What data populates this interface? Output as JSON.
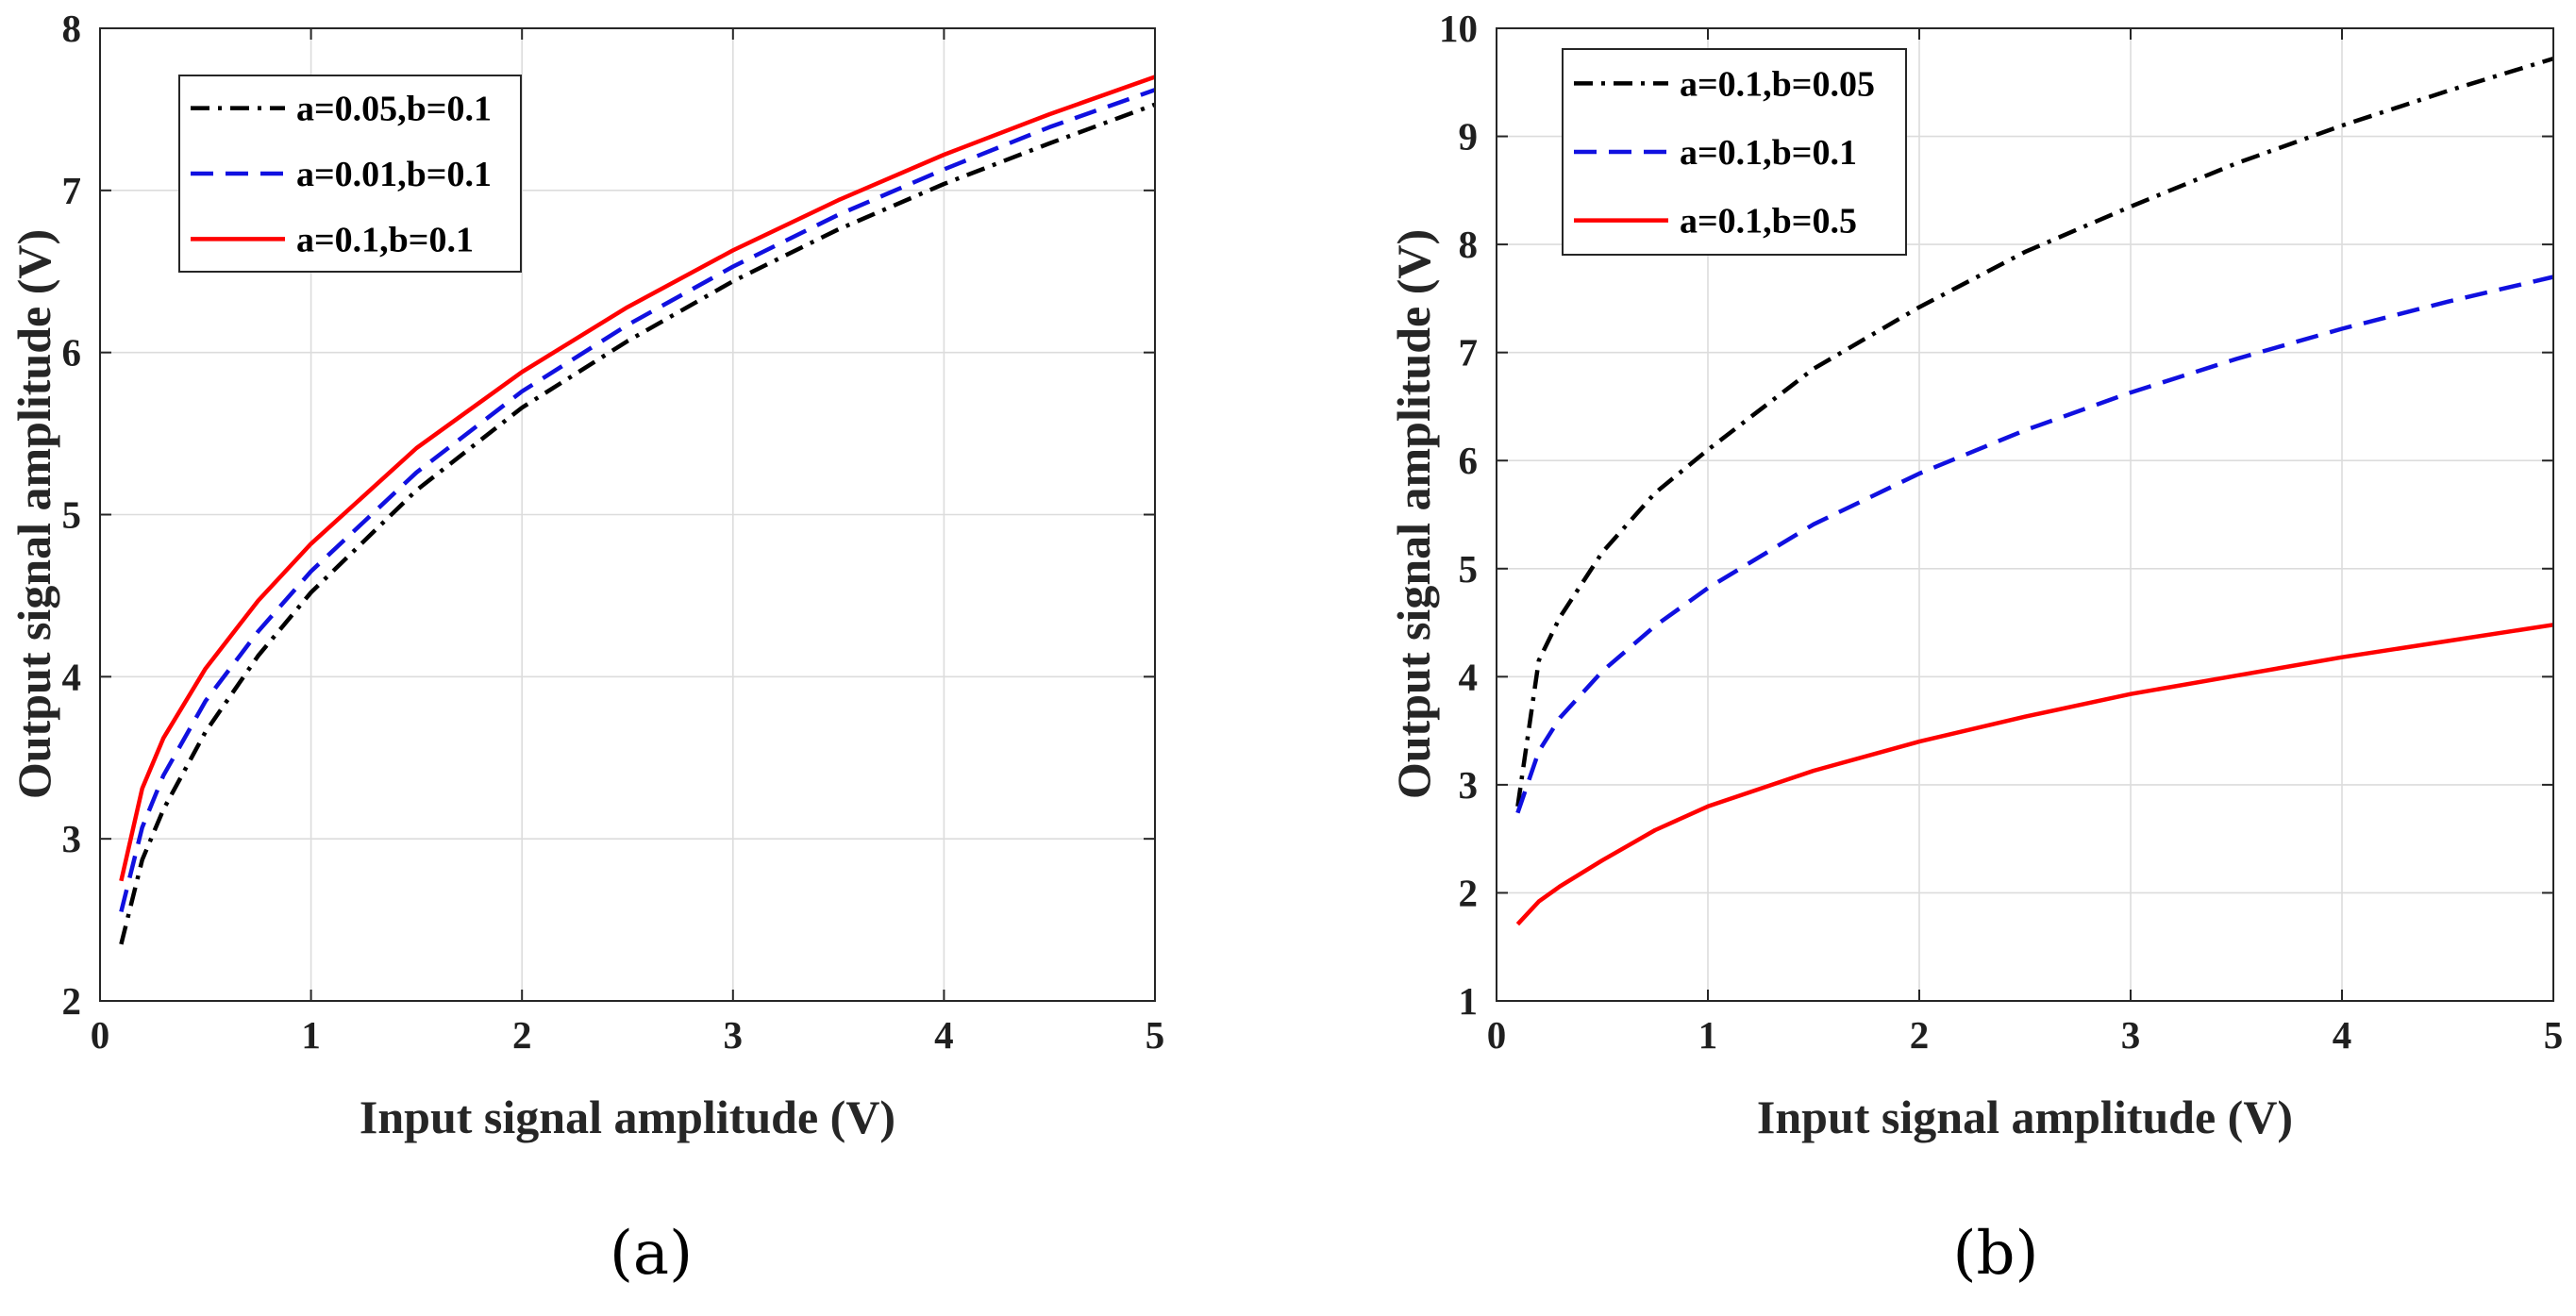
{
  "chart_data": [
    {
      "type": "line",
      "panel_label": "(a)",
      "xlabel": "Input signal amplitude (V)",
      "ylabel": "Output signal amplitude (V)",
      "xlim": [
        0,
        5
      ],
      "ylim": [
        2,
        8
      ],
      "xticks": [
        "0",
        "1",
        "2",
        "3",
        "4",
        "5"
      ],
      "yticks": [
        "2",
        "3",
        "4",
        "5",
        "6",
        "7",
        "8"
      ],
      "grid": true,
      "legend_position": "top-left",
      "x": [
        0.1,
        0.2,
        0.3,
        0.5,
        0.75,
        1,
        1.5,
        2,
        2.5,
        3,
        3.5,
        4,
        4.5,
        5
      ],
      "series": [
        {
          "name": "a=0.05,b=0.1",
          "color": "#000000",
          "dash": "dashdot",
          "values": [
            2.35,
            2.87,
            3.18,
            3.66,
            4.13,
            4.52,
            5.15,
            5.66,
            6.07,
            6.44,
            6.76,
            7.04,
            7.29,
            7.53
          ]
        },
        {
          "name": "a=0.01,b=0.1",
          "color": "#1010e0",
          "dash": "dashed",
          "values": [
            2.55,
            3.07,
            3.39,
            3.85,
            4.28,
            4.65,
            5.26,
            5.76,
            6.17,
            6.53,
            6.85,
            7.13,
            7.39,
            7.62
          ]
        },
        {
          "name": "a=0.1,b=0.1",
          "color": "#ff0000",
          "dash": "solid",
          "values": [
            2.74,
            3.31,
            3.62,
            4.05,
            4.47,
            4.82,
            5.41,
            5.88,
            6.28,
            6.63,
            6.94,
            7.22,
            7.47,
            7.7
          ]
        }
      ]
    },
    {
      "type": "line",
      "panel_label": "(b)",
      "xlabel": "Input signal amplitude (V)",
      "ylabel": "Output signal amplitude (V)",
      "xlim": [
        0,
        5
      ],
      "ylim": [
        1,
        10
      ],
      "xticks": [
        "0",
        "1",
        "2",
        "3",
        "4",
        "5"
      ],
      "yticks": [
        "1",
        "2",
        "3",
        "4",
        "5",
        "6",
        "7",
        "8",
        "9",
        "10"
      ],
      "grid": true,
      "legend_position": "top-left",
      "x": [
        0.1,
        0.2,
        0.3,
        0.5,
        0.75,
        1,
        1.5,
        2,
        2.5,
        3,
        3.5,
        4,
        4.5,
        5
      ],
      "series": [
        {
          "name": "a=0.1,b=0.05",
          "color": "#000000",
          "dash": "dashdot",
          "values": [
            2.8,
            4.15,
            4.55,
            5.15,
            5.7,
            6.1,
            6.85,
            7.42,
            7.93,
            8.35,
            8.75,
            9.1,
            9.42,
            9.72
          ]
        },
        {
          "name": "a=0.1,b=0.1",
          "color": "#1010e0",
          "dash": "dashed",
          "values": [
            2.74,
            3.31,
            3.62,
            4.05,
            4.47,
            4.82,
            5.41,
            5.88,
            6.28,
            6.63,
            6.94,
            7.22,
            7.47,
            7.7
          ]
        },
        {
          "name": "a=0.1,b=0.5",
          "color": "#ff0000",
          "dash": "solid",
          "values": [
            1.71,
            1.92,
            2.06,
            2.3,
            2.58,
            2.8,
            3.13,
            3.4,
            3.63,
            3.84,
            4.01,
            4.18,
            4.33,
            4.48
          ]
        }
      ]
    }
  ]
}
